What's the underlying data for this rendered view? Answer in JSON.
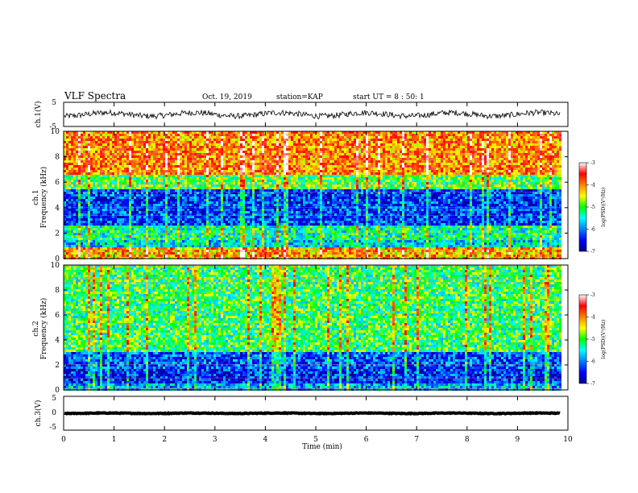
{
  "header": {
    "title": "VLF Spectra",
    "date": "Oct. 19, 2019",
    "station": "station=KAP",
    "start": "start  UT =  8 : 50: 1"
  },
  "chart_data": {
    "type": "heatmap",
    "xlabel": "Time  (min)",
    "xlim": [
      0,
      10
    ],
    "x_ticks": [
      "0",
      "1",
      "2",
      "3",
      "4",
      "5",
      "6",
      "7",
      "8",
      "9",
      "10"
    ],
    "panels": [
      {
        "id": "ch1-waveform",
        "type": "line",
        "ylabel": "ch.1(V)",
        "ylim": [
          -5,
          5
        ],
        "y_ticks": [
          "5",
          "-5"
        ],
        "noise_amplitude": 1.2,
        "baseline": 0
      },
      {
        "id": "ch1-spectrum",
        "type": "heatmap",
        "ylabel_top": "ch.1",
        "ylabel": "Frequency  (kHz)",
        "ylim": [
          0,
          10
        ],
        "y_ticks": [
          "0",
          "2",
          "4",
          "6",
          "8",
          "10"
        ],
        "colorbar": {
          "label": "log(PSD)(V²/Hz)",
          "range": [
            -7,
            -3
          ],
          "ticks": [
            "-3",
            "-4",
            "-5",
            "-6",
            "-7"
          ]
        },
        "bands": [
          {
            "fmin": 0,
            "fmax": 0.8,
            "level": -4.2
          },
          {
            "fmin": 0.8,
            "fmax": 1.5,
            "level": -5.6
          },
          {
            "fmin": 1.5,
            "fmax": 2.6,
            "level": -5.3
          },
          {
            "fmin": 2.6,
            "fmax": 5.4,
            "level": -6.3
          },
          {
            "fmin": 5.4,
            "fmax": 6.6,
            "level": -5.0
          },
          {
            "fmin": 6.6,
            "fmax": 10,
            "level": -4.0
          }
        ]
      },
      {
        "id": "ch2-spectrum",
        "type": "heatmap",
        "ylabel_top": "ch.2",
        "ylabel": "Frequency  (kHz)",
        "ylim": [
          0,
          10
        ],
        "y_ticks": [
          "0",
          "2",
          "4",
          "6",
          "8",
          "10"
        ],
        "colorbar": {
          "label": "log(PSD)(V²/Hz)",
          "range": [
            -7,
            -3
          ],
          "ticks": [
            "-3",
            "-4",
            "-5",
            "-6",
            "-7"
          ]
        },
        "bands": [
          {
            "fmin": 0,
            "fmax": 0.6,
            "level": -5.8
          },
          {
            "fmin": 0.6,
            "fmax": 1.6,
            "level": -6.4
          },
          {
            "fmin": 1.6,
            "fmax": 3.0,
            "level": -6.2
          },
          {
            "fmin": 3.0,
            "fmax": 10,
            "level": -5.1
          }
        ]
      },
      {
        "id": "ch3-waveform",
        "type": "line",
        "ylabel": "ch.3(V)",
        "ylim": [
          -5,
          5
        ],
        "y_ticks": [
          "5",
          "0",
          "-5"
        ],
        "noise_amplitude": 0.1,
        "baseline": 0
      }
    ],
    "data_end_min": 9.85
  }
}
